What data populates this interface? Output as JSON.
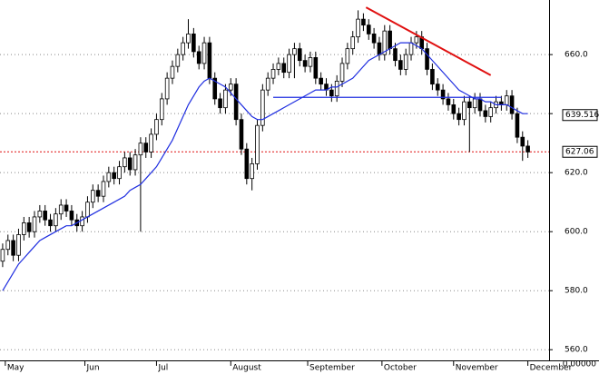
{
  "chart_data": {
    "type": "candlestick",
    "ylim": [
      557,
      678.5
    ],
    "xlim": [
      -0.5,
      103
    ],
    "yticks": [
      {
        "value": 560,
        "label": "560.0"
      },
      {
        "value": 580,
        "label": "580.0"
      },
      {
        "value": 600,
        "label": "600.0"
      },
      {
        "value": 620,
        "label": "620.0"
      },
      {
        "value": 640,
        "label": "640.0"
      },
      {
        "value": 660,
        "label": "660.0"
      }
    ],
    "xticks": [
      {
        "value": 0.5,
        "label": "May"
      },
      {
        "value": 15.5,
        "label": "Jun"
      },
      {
        "value": 29,
        "label": "Jul"
      },
      {
        "value": 43,
        "label": "August"
      },
      {
        "value": 57.5,
        "label": "September"
      },
      {
        "value": 71.5,
        "label": "October"
      },
      {
        "value": 85,
        "label": "November"
      },
      {
        "value": 99,
        "label": "December"
      }
    ],
    "grid": true,
    "open": [
      590,
      594,
      597,
      592,
      599,
      603,
      600,
      605,
      607,
      604,
      602,
      606,
      609,
      607,
      604,
      602,
      605,
      610,
      614,
      612,
      617,
      620,
      618,
      622,
      625,
      621,
      626,
      630,
      627,
      633,
      638,
      645,
      652,
      656,
      660,
      664,
      667,
      661,
      657,
      664,
      652,
      645,
      642,
      648,
      650,
      638,
      628,
      618,
      623,
      636,
      648,
      652,
      655,
      657,
      654,
      660,
      662,
      658,
      656,
      659,
      652,
      650,
      648,
      646,
      651,
      657,
      662,
      666,
      672,
      670,
      667,
      664,
      660,
      668,
      662,
      658,
      655,
      660,
      664,
      666,
      662,
      655,
      650,
      648,
      645,
      643,
      640,
      638,
      644,
      642,
      645,
      641,
      639,
      642,
      644,
      643,
      646,
      640,
      632,
      629
    ],
    "high": [
      596,
      599,
      599,
      601,
      605,
      605,
      607,
      609,
      609,
      606,
      608,
      611,
      611,
      609,
      606,
      607,
      612,
      616,
      616,
      619,
      622,
      622,
      624,
      627,
      627,
      628,
      632,
      632,
      635,
      640,
      647,
      654,
      658,
      662,
      666,
      672,
      669,
      663,
      666,
      666,
      654,
      647,
      650,
      652,
      652,
      640,
      630,
      625,
      638,
      650,
      654,
      657,
      659,
      659,
      662,
      664,
      664,
      660,
      661,
      661,
      654,
      652,
      650,
      653,
      659,
      664,
      668,
      675,
      674,
      672,
      669,
      666,
      670,
      670,
      664,
      660,
      662,
      666,
      668,
      668,
      664,
      657,
      652,
      650,
      647,
      645,
      642,
      646,
      646,
      647,
      647,
      643,
      644,
      646,
      646,
      648,
      648,
      642,
      634,
      631
    ],
    "low": [
      588,
      592,
      590,
      590,
      597,
      598,
      598,
      603,
      602,
      600,
      600,
      604,
      605,
      602,
      600,
      600,
      603,
      608,
      610,
      610,
      615,
      616,
      616,
      620,
      619,
      619,
      600,
      625,
      625,
      631,
      636,
      643,
      650,
      654,
      658,
      662,
      659,
      655,
      655,
      650,
      643,
      640,
      640,
      646,
      636,
      626,
      616,
      614,
      621,
      634,
      646,
      650,
      653,
      652,
      652,
      652,
      656,
      654,
      654,
      650,
      648,
      646,
      644,
      644,
      649,
      655,
      660,
      664,
      668,
      665,
      662,
      658,
      658,
      660,
      656,
      653,
      653,
      658,
      662,
      660,
      653,
      648,
      646,
      643,
      641,
      638,
      636,
      636,
      627,
      640,
      639,
      637,
      637,
      640,
      641,
      641,
      638,
      630,
      624,
      625
    ],
    "close": [
      594,
      597,
      592,
      599,
      603,
      600,
      605,
      607,
      604,
      602,
      606,
      609,
      607,
      604,
      602,
      605,
      610,
      614,
      612,
      617,
      620,
      618,
      622,
      625,
      621,
      626,
      630,
      627,
      633,
      638,
      645,
      652,
      656,
      660,
      664,
      667,
      661,
      657,
      664,
      652,
      645,
      642,
      648,
      650,
      638,
      628,
      618,
      623,
      636,
      648,
      652,
      655,
      657,
      654,
      660,
      662,
      658,
      656,
      659,
      652,
      650,
      648,
      646,
      651,
      657,
      662,
      666,
      672,
      670,
      667,
      664,
      660,
      668,
      662,
      658,
      655,
      660,
      664,
      666,
      662,
      655,
      650,
      648,
      645,
      643,
      640,
      638,
      644,
      642,
      645,
      641,
      639,
      642,
      644,
      643,
      646,
      640,
      632,
      629,
      627
    ],
    "moving_average": {
      "color": "#1f2ee0",
      "values": [
        580,
        583,
        586,
        589,
        591,
        593,
        595,
        597,
        598,
        599,
        600,
        601,
        602,
        602,
        603,
        604,
        605,
        606,
        607,
        608,
        609,
        610,
        611,
        612,
        614,
        615,
        616,
        618,
        620,
        622,
        625,
        628,
        631,
        635,
        639,
        643,
        646,
        649,
        651,
        652,
        651,
        650,
        649,
        647,
        645,
        643,
        641,
        639,
        638,
        638,
        639,
        640,
        641,
        642,
        643,
        644,
        645,
        646,
        647,
        648,
        648,
        648,
        649,
        649,
        650,
        651,
        652,
        654,
        656,
        658,
        659,
        660,
        661,
        662,
        663,
        664,
        664,
        664,
        663,
        662,
        660,
        658,
        656,
        654,
        652,
        650,
        648,
        647,
        646,
        645,
        645,
        644,
        644,
        643,
        643,
        643,
        642,
        641,
        640,
        640
      ]
    },
    "trendlines": [
      {
        "color": "#e01010",
        "x": [
          68.5,
          92
        ],
        "y": [
          676,
          653
        ]
      },
      {
        "color": "#1f2ee0",
        "x": [
          51,
          94
        ],
        "y": [
          645.5,
          645.5
        ]
      }
    ],
    "markers": [
      {
        "value": 639.516,
        "label": "639.516",
        "line": false
      },
      {
        "value": 627.06,
        "label": "627.06",
        "line": true,
        "color": "#e01010"
      }
    ],
    "corner_label": "0.00000"
  }
}
